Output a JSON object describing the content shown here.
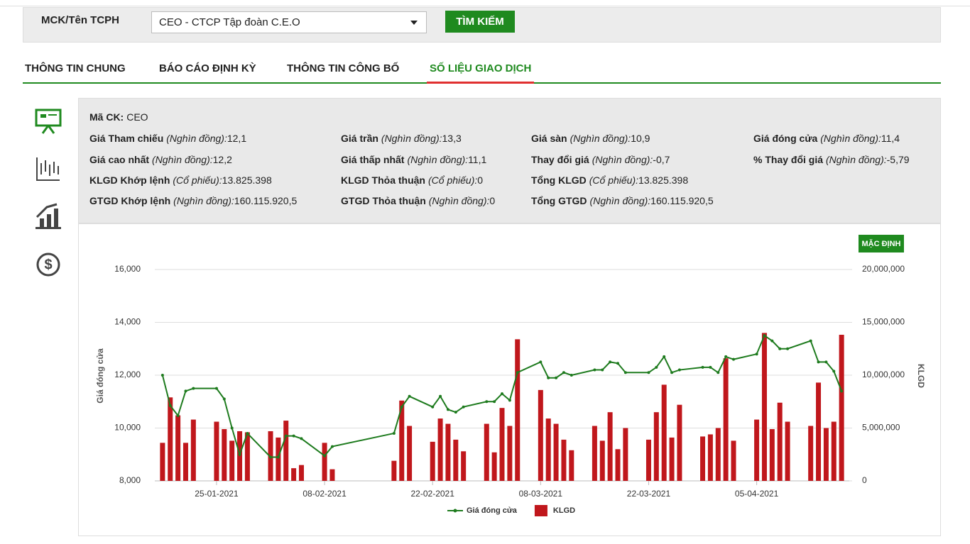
{
  "search": {
    "label": "MCK/Tên TCPH",
    "select": "CEO - CTCP Tập đoàn C.E.O",
    "button": "TÌM KIẾM"
  },
  "tabs": {
    "items": [
      "THÔNG TIN CHUNG",
      "BÁO CÁO ĐỊNH KỲ",
      "THÔNG TIN CÔNG BỐ",
      "SỐ LIỆU GIAO DỊCH"
    ],
    "active": 3
  },
  "info": {
    "rows": [
      [
        {
          "label": "Mã CK:",
          "value": "CEO"
        }
      ],
      [
        {
          "label": "Giá Tham chiếu",
          "unit": "(Nghìn đồng):",
          "value": "12,1"
        },
        {
          "label": "Giá trần",
          "unit": "(Nghìn đồng):",
          "value": "13,3"
        },
        {
          "label": "Giá sàn",
          "unit": "(Nghìn đồng):",
          "value": "10,9"
        },
        {
          "label": "Giá đóng cửa",
          "unit": "(Nghìn đồng):",
          "value": "11,4"
        }
      ],
      [
        {
          "label": "Giá cao nhất",
          "unit": "(Nghìn đồng):",
          "value": "12,2"
        },
        {
          "label": "Giá thấp nhất",
          "unit": "(Nghìn đồng):",
          "value": "11,1"
        },
        {
          "label": "Thay đổi giá",
          "unit": "(Nghìn đồng):",
          "value": "-0,7"
        },
        {
          "label": "% Thay đổi giá",
          "unit": "(Nghìn đồng):",
          "value": "-5,79"
        }
      ],
      [
        {
          "label": "KLGD Khớp lệnh",
          "unit": "(Cổ phiếu):",
          "value": "13.825.398"
        },
        {
          "label": "KLGD Thỏa thuận",
          "unit": "(Cổ phiếu):",
          "value": "0"
        },
        {
          "label": "Tổng KLGD",
          "unit": "(Cổ phiếu):",
          "value": "13.825.398"
        }
      ],
      [
        {
          "label": "GTGD Khớp lệnh",
          "unit": "(Nghìn đồng):",
          "value": "160.115.920,5"
        },
        {
          "label": "GTGD Thỏa thuận",
          "unit": "(Nghìn đồng):",
          "value": "0"
        },
        {
          "label": "Tổng GTGD",
          "unit": "(Nghìn đồng):",
          "value": "160.115.920,5"
        }
      ]
    ]
  },
  "chart_button": "MẶC ĐỊNH",
  "chart_data": {
    "type": "combo",
    "ylabel": "Giá đóng cửa",
    "y2label": "KLGD",
    "x": [
      "18-01-2021",
      "19-01-2021",
      "20-01-2021",
      "21-01-2021",
      "22-01-2021",
      "25-01-2021",
      "26-01-2021",
      "27-01-2021",
      "28-01-2021",
      "29-01-2021",
      "01-02-2021",
      "02-02-2021",
      "03-02-2021",
      "04-02-2021",
      "05-02-2021",
      "08-02-2021",
      "09-02-2021",
      "17-02-2021",
      "18-02-2021",
      "19-02-2021",
      "22-02-2021",
      "23-02-2021",
      "24-02-2021",
      "25-02-2021",
      "26-02-2021",
      "01-03-2021",
      "02-03-2021",
      "03-03-2021",
      "04-03-2021",
      "05-03-2021",
      "08-03-2021",
      "09-03-2021",
      "10-03-2021",
      "11-03-2021",
      "12-03-2021",
      "15-03-2021",
      "16-03-2021",
      "17-03-2021",
      "18-03-2021",
      "19-03-2021",
      "22-03-2021",
      "23-03-2021",
      "24-03-2021",
      "25-03-2021",
      "26-03-2021",
      "29-03-2021",
      "30-03-2021",
      "31-03-2021",
      "01-04-2021",
      "02-04-2021",
      "05-04-2021",
      "06-04-2021",
      "07-04-2021",
      "08-04-2021",
      "09-04-2021",
      "12-04-2021",
      "13-04-2021",
      "14-04-2021",
      "15-04-2021",
      "16-04-2021"
    ],
    "series": [
      {
        "name": "Giá đóng cửa",
        "type": "line",
        "color": "#1e7b1e",
        "values": [
          12000,
          10850,
          10470,
          11400,
          11500,
          11500,
          11100,
          10000,
          9000,
          9800,
          8900,
          8900,
          9700,
          9700,
          9600,
          8950,
          9300,
          9800,
          10800,
          11200,
          10800,
          11200,
          10700,
          10600,
          10800,
          11000,
          11000,
          11300,
          11050,
          12100,
          12500,
          11900,
          11900,
          12100,
          12000,
          12200,
          12200,
          12500,
          12450,
          12100,
          12100,
          12300,
          12700,
          12100,
          12200,
          12300,
          12300,
          12100,
          12700,
          12600,
          12800,
          13500,
          13300,
          13000,
          13000,
          13300,
          12500,
          12500,
          12150,
          11400
        ]
      },
      {
        "name": "KLGD",
        "type": "bar",
        "axis": "y2",
        "color": "#c0171c",
        "values": [
          3600000,
          7900000,
          6200000,
          3600000,
          5800000,
          5600000,
          4900000,
          3800000,
          4700000,
          4600000,
          4700000,
          4100000,
          5700000,
          1200000,
          1500000,
          3600000,
          1100000,
          1900000,
          7600000,
          5200000,
          3700000,
          5900000,
          5400000,
          3900000,
          2800000,
          5400000,
          2700000,
          6900000,
          5200000,
          13400000,
          8600000,
          5900000,
          5400000,
          3900000,
          2900000,
          5200000,
          3800000,
          6500000,
          3000000,
          5000000,
          3900000,
          6500000,
          9100000,
          4100000,
          7200000,
          4200000,
          4400000,
          5000000,
          11600000,
          3800000,
          5800000,
          14000000,
          4900000,
          7400000,
          5600000,
          5200000,
          9300000,
          5000000,
          5600000,
          13825398
        ]
      }
    ],
    "xlim": [
      "17-01-2021",
      "17-04-2021"
    ],
    "xticks": [
      "25-01-2021",
      "08-02-2021",
      "22-02-2021",
      "08-03-2021",
      "22-03-2021",
      "05-04-2021"
    ],
    "ylim": [
      8000,
      16000
    ],
    "yticks": [
      {
        "value": 8000,
        "label": "8,000"
      },
      {
        "value": 10000,
        "label": "10,000"
      },
      {
        "value": 12000,
        "label": "12,000"
      },
      {
        "value": 14000,
        "label": "14,000"
      },
      {
        "value": 16000,
        "label": "16,000"
      }
    ],
    "y2lim": [
      0,
      20000000
    ],
    "y2ticks": [
      0,
      {
        "value": 5000000,
        "label": "5,000,000"
      },
      {
        "value": 10000000,
        "label": "10,000,000"
      },
      {
        "value": 15000000,
        "label": "15,000,000"
      },
      {
        "value": 20000000,
        "label": "20,000,000"
      }
    ],
    "grid": true,
    "legend": "bottom"
  }
}
